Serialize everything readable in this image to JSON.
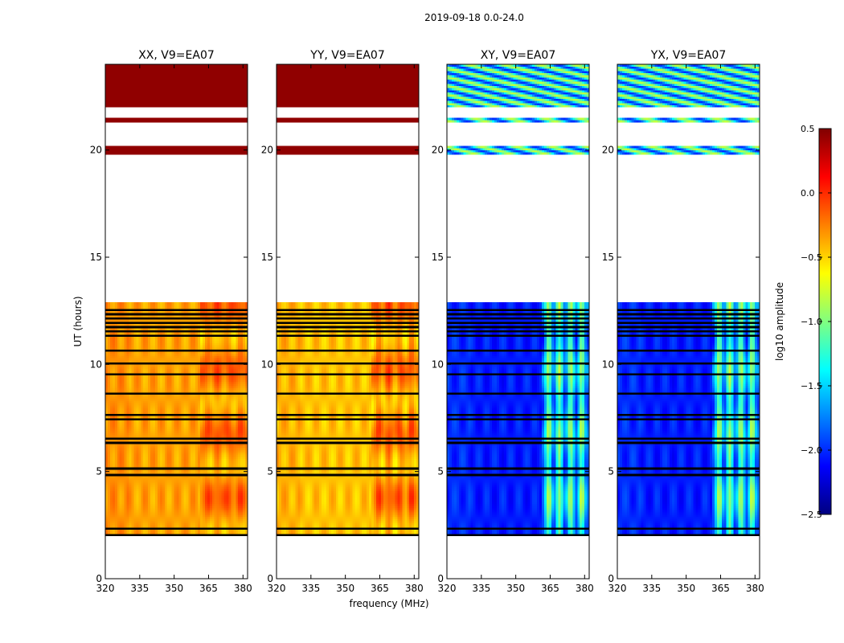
{
  "figure": {
    "suptitle": "2019-09-18 0.0-24.0"
  },
  "chart_data": {
    "type": "heatmap",
    "title": "2019-09-18 0.0-24.0",
    "xlabel": "frequency (MHz)",
    "ylabel": "UT (hours)",
    "xlim": [
      320,
      382
    ],
    "ylim": [
      0,
      24
    ],
    "xticks": [
      320,
      335,
      350,
      365,
      380
    ],
    "yticks": [
      0,
      5,
      10,
      15,
      20
    ],
    "panels": [
      {
        "title": "XX, V9=EA07",
        "polarization": "XX",
        "base_amp": -0.35,
        "band_boost": 0.12
      },
      {
        "title": "YY, V9=EA07",
        "polarization": "YY",
        "base_amp": -0.45,
        "band_boost": 0.25
      },
      {
        "title": "XY, V9=EA07",
        "polarization": "XY",
        "base_amp": -2.05,
        "band_boost": 1.05
      },
      {
        "title": "YX, V9=EA07",
        "polarization": "YX",
        "base_amp": -2.05,
        "band_boost": 1.05
      }
    ],
    "data_time_ranges_hours": [
      [
        2.0,
        12.9
      ],
      [
        19.8,
        20.2
      ],
      [
        21.3,
        21.5
      ],
      [
        22.0,
        24.0
      ]
    ],
    "flagged_rows_hours": [
      2.1,
      2.35,
      4.85,
      5.15,
      6.35,
      6.55,
      7.4,
      7.65,
      8.65,
      9.55,
      10.05,
      10.65,
      11.35,
      11.55,
      11.75,
      11.95,
      12.1,
      12.3,
      12.5
    ],
    "high_amp_band_mhz": [
      361,
      381
    ],
    "colorbar": {
      "label": "log10 amplitude",
      "vmin": -2.5,
      "vmax": 0.5,
      "ticks": [
        -2.5,
        -2.0,
        -1.5,
        -1.0,
        -0.5,
        0.0,
        0.5
      ],
      "tick_labels": [
        "−2.5",
        "−2.0",
        "−1.5",
        "−1.0",
        "−0.5",
        "0.0",
        "0.5"
      ],
      "colormap": "jet"
    }
  }
}
